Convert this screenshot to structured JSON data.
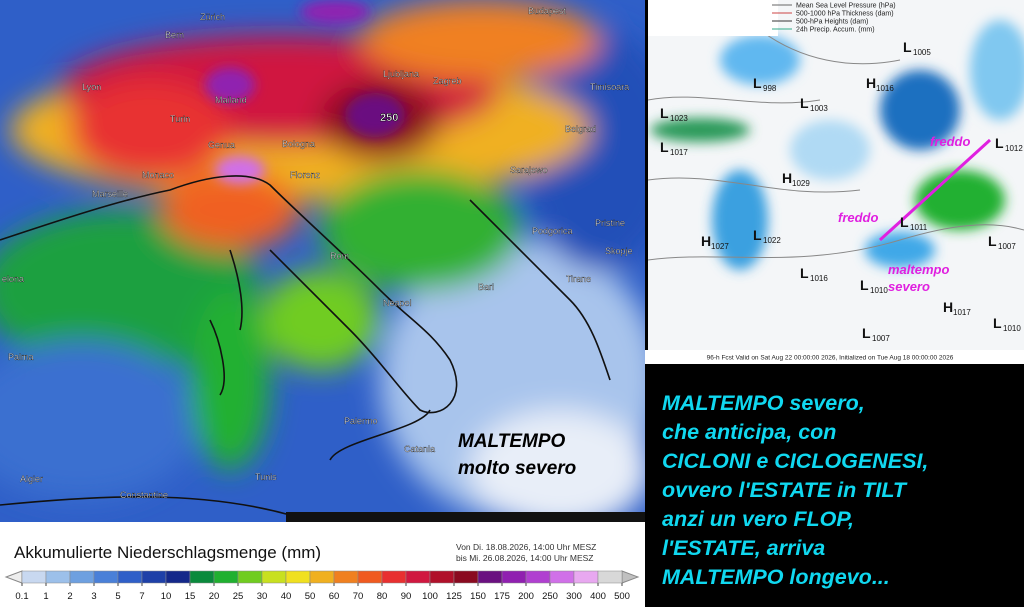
{
  "left_map": {
    "cities": [
      "Zürich",
      "Bern",
      "Budapest",
      "Lyon",
      "Mailand",
      "Ljubljana",
      "Zagreb",
      "Timisoara",
      "Turin",
      "Belgrad",
      "Genua",
      "Bologna",
      "Monaco",
      "Florenz",
      "Sarajewo",
      "Marseille",
      "Podgorica",
      "Pristine",
      "Skopje",
      "Rom",
      "Tirane",
      "Neapel",
      "Bari",
      "Palma",
      "elona",
      "Palermo",
      "Catania",
      "Algier",
      "Constantine",
      "Tunis"
    ],
    "peak_label": "250",
    "annotation": [
      "MALTEMPO",
      "molto severo"
    ]
  },
  "legend": {
    "title": "Akkumulierte Niederschlagsmenge (mm)",
    "period": [
      "Von Di. 18.08.2026, 14:00 Uhr MESZ",
      "bis Mi. 26.08.2026, 14:00 Uhr MESZ"
    ],
    "ticks": [
      0.1,
      1,
      2,
      3,
      5,
      7,
      10,
      15,
      20,
      25,
      30,
      40,
      50,
      60,
      70,
      80,
      90,
      100,
      125,
      150,
      175,
      200,
      250,
      300,
      400,
      500
    ],
    "colors": [
      "#c8d8f0",
      "#9cc0ea",
      "#6ea0e0",
      "#4a80d8",
      "#2f5fc8",
      "#1e40a8",
      "#14288a",
      "#0a8a3c",
      "#20b030",
      "#70cc20",
      "#c8e020",
      "#f0e020",
      "#f0b020",
      "#f08020",
      "#f05a20",
      "#e83030",
      "#d01840",
      "#b0102a",
      "#8a0a20",
      "#6a1080",
      "#9020b0",
      "#b040d0",
      "#d070e8",
      "#e8a8f0",
      "#d8d8d8"
    ]
  },
  "right_map": {
    "legend": [
      "Mean Sea Level Pressure (hPa)",
      "500-1000 hPa Thickness (dam)",
      "500-hPa Heights (dam)",
      "24h Precip. Accum. (mm)"
    ],
    "centers": [
      {
        "type": "L",
        "value": 1005
      },
      {
        "type": "H",
        "value": 1016
      },
      {
        "type": "L",
        "value": 998
      },
      {
        "type": "L",
        "value": 1003
      },
      {
        "type": "L",
        "value": 1023
      },
      {
        "type": "L",
        "value": 1017
      },
      {
        "type": "H",
        "value": 1029
      },
      {
        "type": "L",
        "value": 1012
      },
      {
        "type": "H",
        "value": 1027
      },
      {
        "type": "L",
        "value": 1022
      },
      {
        "type": "L",
        "value": 1016
      },
      {
        "type": "L",
        "value": 1011
      },
      {
        "type": "L",
        "value": 1007
      },
      {
        "type": "L",
        "value": 1010
      },
      {
        "type": "L",
        "value": 1007
      },
      {
        "type": "H",
        "value": 1017
      },
      {
        "type": "L",
        "value": 1010
      }
    ],
    "annotations": [
      "freddo",
      "freddo",
      "maltempo",
      "severo"
    ],
    "footer": "96-h Fcst Valid on Sat Aug 22 00:00:00 2026, Initialized on Tue Aug 18 00:00:00 2026"
  },
  "commentary": [
    "MALTEMPO severo,",
    "che anticipa, con",
    "CICLONI e CICLOGENESI,",
    "ovvero l'ESTATE in TILT",
    "anzi un vero FLOP,",
    "l'ESTATE, arriva",
    "MALTEMPO longevo..."
  ]
}
